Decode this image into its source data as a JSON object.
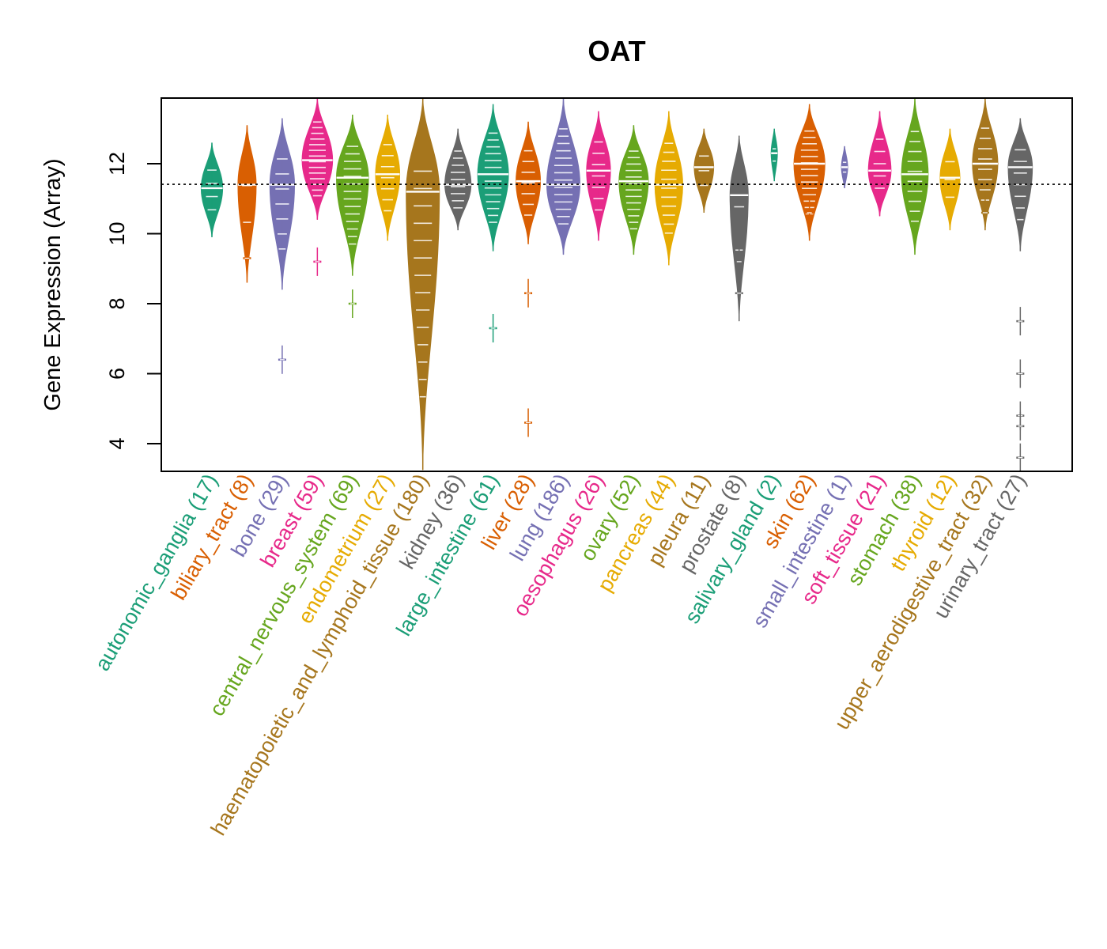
{
  "chart_data": {
    "type": "violin",
    "title": "OAT",
    "xlabel": "",
    "ylabel": "Gene Expression (Array)",
    "ylim": [
      3.25,
      13.9
    ],
    "yticks": [
      4,
      6,
      8,
      10,
      12
    ],
    "reference_line": 11.41,
    "grid": false,
    "legend": "none",
    "categories": [
      {
        "name": "autonomic_ganglia",
        "n": 17,
        "color": "#1B9E77",
        "min": 9.9,
        "max": 12.6,
        "median": 11.3,
        "outliers": []
      },
      {
        "name": "biliary_tract",
        "n": 8,
        "color": "#D95F02",
        "min": 8.6,
        "max": 13.1,
        "median": 11.4,
        "outliers": [
          9.3
        ]
      },
      {
        "name": "bone",
        "n": 29,
        "color": "#7570B3",
        "min": 8.4,
        "max": 13.3,
        "median": 11.4,
        "outliers": [
          6.4
        ]
      },
      {
        "name": "breast",
        "n": 59,
        "color": "#E7298A",
        "min": 10.4,
        "max": 13.9,
        "median": 12.1,
        "outliers": [
          9.2
        ]
      },
      {
        "name": "central_nervous_system",
        "n": 69,
        "color": "#66A61E",
        "min": 8.8,
        "max": 13.4,
        "median": 11.6,
        "outliers": [
          8.0
        ]
      },
      {
        "name": "endometrium",
        "n": 27,
        "color": "#E6AB02",
        "min": 9.8,
        "max": 13.4,
        "median": 11.7,
        "outliers": []
      },
      {
        "name": "haematopoietic_and_lymphoid_tissue",
        "n": 180,
        "color": "#A6761D",
        "min": 3.25,
        "max": 13.9,
        "median": 11.2,
        "outliers": []
      },
      {
        "name": "kidney",
        "n": 36,
        "color": "#666666",
        "min": 10.1,
        "max": 13.0,
        "median": 11.4,
        "outliers": []
      },
      {
        "name": "large_intestine",
        "n": 61,
        "color": "#1B9E77",
        "min": 9.5,
        "max": 13.7,
        "median": 11.7,
        "outliers": [
          7.3
        ]
      },
      {
        "name": "liver",
        "n": 28,
        "color": "#D95F02",
        "min": 9.7,
        "max": 13.2,
        "median": 11.5,
        "outliers": [
          8.3,
          4.6
        ]
      },
      {
        "name": "lung",
        "n": 186,
        "color": "#7570B3",
        "min": 9.4,
        "max": 13.9,
        "median": 11.4,
        "outliers": []
      },
      {
        "name": "oesophagus",
        "n": 26,
        "color": "#E7298A",
        "min": 9.8,
        "max": 13.5,
        "median": 11.8,
        "outliers": []
      },
      {
        "name": "ovary",
        "n": 52,
        "color": "#66A61E",
        "min": 9.4,
        "max": 13.1,
        "median": 11.5,
        "outliers": []
      },
      {
        "name": "pancreas",
        "n": 44,
        "color": "#E6AB02",
        "min": 9.1,
        "max": 13.5,
        "median": 11.4,
        "outliers": []
      },
      {
        "name": "pleura",
        "n": 11,
        "color": "#A6761D",
        "min": 10.6,
        "max": 13.0,
        "median": 11.9,
        "outliers": []
      },
      {
        "name": "prostate",
        "n": 8,
        "color": "#666666",
        "min": 7.5,
        "max": 12.8,
        "median": 11.1,
        "outliers": [
          9.2,
          8.3
        ]
      },
      {
        "name": "salivary_gland",
        "n": 2,
        "color": "#1B9E77",
        "min": 11.5,
        "max": 13.0,
        "median": 12.3,
        "outliers": []
      },
      {
        "name": "skin",
        "n": 62,
        "color": "#D95F02",
        "min": 9.8,
        "max": 13.7,
        "median": 12.0,
        "outliers": [
          10.6
        ]
      },
      {
        "name": "small_intestine",
        "n": 1,
        "color": "#7570B3",
        "min": 11.3,
        "max": 12.5,
        "median": 11.9,
        "outliers": []
      },
      {
        "name": "soft_tissue",
        "n": 21,
        "color": "#E7298A",
        "min": 10.5,
        "max": 13.5,
        "median": 11.8,
        "outliers": []
      },
      {
        "name": "stomach",
        "n": 38,
        "color": "#66A61E",
        "min": 9.4,
        "max": 13.9,
        "median": 11.7,
        "outliers": []
      },
      {
        "name": "thyroid",
        "n": 12,
        "color": "#E6AB02",
        "min": 10.1,
        "max": 13.0,
        "median": 11.6,
        "outliers": []
      },
      {
        "name": "upper_aerodigestive_tract",
        "n": 32,
        "color": "#A6761D",
        "min": 10.1,
        "max": 13.9,
        "median": 12.0,
        "outliers": [
          10.6
        ]
      },
      {
        "name": "urinary_tract",
        "n": 27,
        "color": "#666666",
        "min": 9.5,
        "max": 13.3,
        "median": 11.9,
        "outliers": [
          7.5,
          6.0,
          4.8,
          4.5,
          3.6
        ]
      }
    ]
  }
}
